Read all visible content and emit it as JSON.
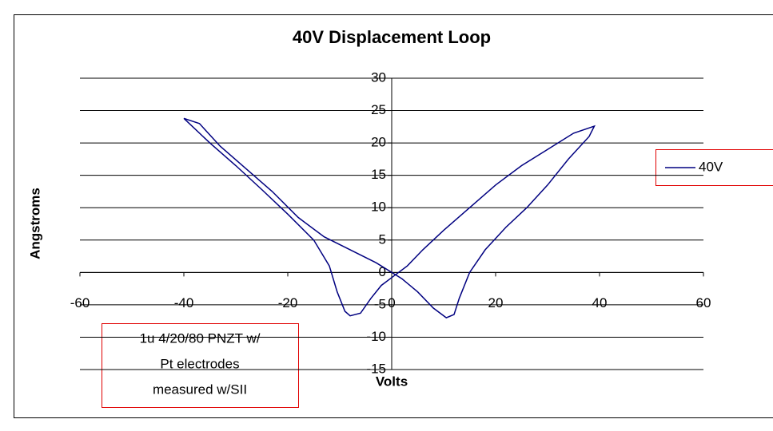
{
  "chart_data": {
    "type": "line",
    "title": "40V Displacement Loop",
    "x_label": "Volts",
    "y_label": "Angstroms",
    "x": [
      -40,
      -35,
      -30,
      -25,
      -20,
      -15,
      -12,
      -10.5,
      -9,
      -8,
      -6,
      -4,
      -2,
      0,
      3,
      6,
      10,
      15,
      20,
      25,
      30,
      35,
      39,
      38,
      34,
      30,
      26,
      22,
      18,
      15,
      13,
      12,
      10.5,
      8,
      5,
      2,
      0,
      -3,
      -8,
      -13,
      -18,
      -23,
      -28,
      -33,
      -37,
      -40
    ],
    "series": [
      {
        "name": "40V",
        "color": "#000080",
        "values": [
          23.8,
          20,
          16.5,
          12.8,
          9,
          5,
          1,
          -3,
          -6,
          -6.7,
          -6.3,
          -4,
          -2,
          -0.8,
          1,
          3.5,
          6.5,
          10,
          13.5,
          16.5,
          19,
          21.5,
          22.6,
          21,
          17.5,
          13.5,
          10,
          7,
          3.5,
          0,
          -4,
          -6.5,
          -7,
          -5.5,
          -3,
          -1,
          0,
          1.5,
          3.5,
          5.5,
          8.5,
          12.5,
          16,
          19.5,
          23,
          23.8
        ]
      }
    ],
    "xlim": [
      -60,
      60
    ],
    "xticks": [
      -60,
      -40,
      -20,
      0,
      20,
      40,
      60
    ],
    "ylim": [
      -15,
      30
    ],
    "yticks": [
      -15,
      -10,
      -5,
      0,
      5,
      10,
      15,
      20,
      25,
      30
    ],
    "grid": true,
    "legend": "right",
    "annotation": [
      "1u 4/20/80 PNZT w/",
      "Pt electrodes",
      "measured w/SII"
    ]
  }
}
